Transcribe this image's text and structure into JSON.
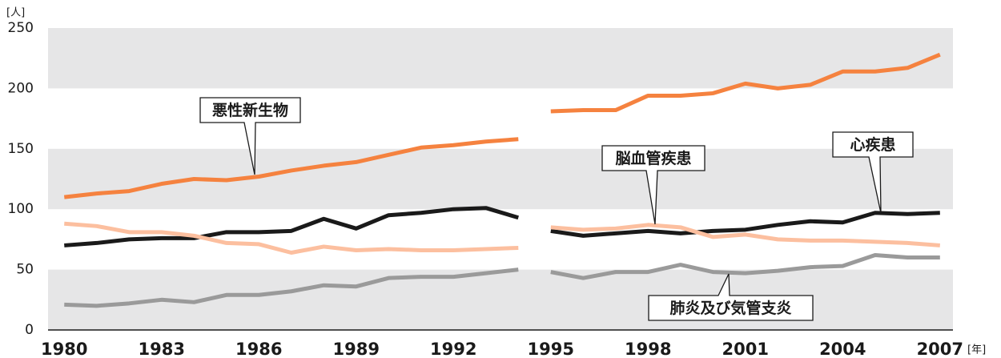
{
  "chart_data": {
    "type": "line",
    "y_label": "[人]",
    "x_label": "[年]",
    "x": [
      1980,
      1981,
      1982,
      1983,
      1984,
      1985,
      1986,
      1987,
      1988,
      1989,
      1990,
      1991,
      1992,
      1993,
      1994,
      1995,
      1996,
      1997,
      1998,
      1999,
      2000,
      2001,
      2002,
      2003,
      2004,
      2005,
      2006,
      2007
    ],
    "break_before": 1995,
    "series": [
      {
        "name": "悪性新生物",
        "color": "#f5823f",
        "values": [
          110,
          113,
          115,
          121,
          125,
          124,
          127,
          132,
          136,
          139,
          145,
          151,
          153,
          156,
          158,
          181,
          182,
          182,
          194,
          194,
          196,
          204,
          200,
          203,
          214,
          214,
          217,
          228
        ]
      },
      {
        "name": "心疾患",
        "color": "#1a1a1a",
        "values": [
          70,
          72,
          75,
          76,
          76,
          81,
          81,
          82,
          92,
          84,
          95,
          97,
          100,
          101,
          93,
          82,
          78,
          80,
          82,
          80,
          82,
          83,
          87,
          90,
          89,
          97,
          96,
          97
        ]
      },
      {
        "name": "脳血管疾患",
        "color": "#fcbf9f",
        "values": [
          88,
          86,
          81,
          81,
          78,
          72,
          71,
          64,
          69,
          66,
          67,
          66,
          66,
          67,
          68,
          85,
          83,
          84,
          87,
          85,
          77,
          79,
          75,
          74,
          74,
          73,
          72,
          70
        ]
      },
      {
        "name": "肺炎及び気管支炎",
        "color": "#9a9a9a",
        "values": [
          21,
          20,
          22,
          25,
          23,
          29,
          29,
          32,
          37,
          36,
          43,
          44,
          44,
          47,
          50,
          48,
          43,
          48,
          48,
          54,
          48,
          47,
          49,
          52,
          53,
          62,
          60,
          60
        ]
      }
    ],
    "xlim": [
      1979.5,
      2007.4
    ],
    "xticks": [
      1980,
      1983,
      1986,
      1989,
      1992,
      1995,
      1998,
      2001,
      2004,
      2007
    ],
    "ylim": [
      0,
      250
    ],
    "yticks": [
      0,
      50,
      100,
      150,
      200,
      250
    ],
    "bands": true,
    "band_color": "#e6e6e7"
  }
}
